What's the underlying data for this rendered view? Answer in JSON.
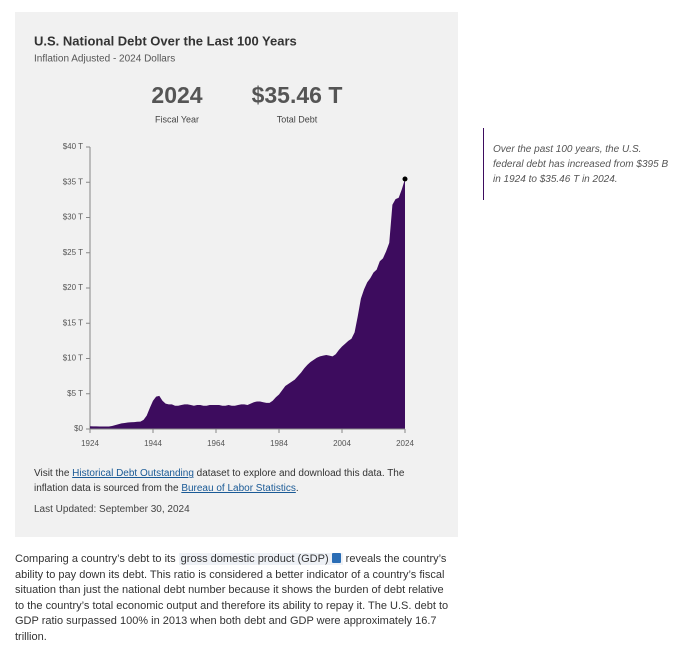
{
  "chart_data": {
    "type": "area",
    "title": "U.S. National Debt Over the Last 100 Years",
    "subtitle": "Inflation Adjusted - 2024 Dollars",
    "highlight": {
      "year": "2024",
      "year_caption": "Fiscal Year",
      "value": "$35.46 T",
      "value_caption": "Total Debt"
    },
    "color": "#3d0c5e",
    "x": [
      1924,
      1925,
      1926,
      1927,
      1928,
      1929,
      1930,
      1931,
      1932,
      1933,
      1934,
      1935,
      1936,
      1937,
      1938,
      1939,
      1940,
      1941,
      1942,
      1943,
      1944,
      1945,
      1946,
      1947,
      1948,
      1949,
      1950,
      1951,
      1952,
      1953,
      1954,
      1955,
      1956,
      1957,
      1958,
      1959,
      1960,
      1961,
      1962,
      1963,
      1964,
      1965,
      1966,
      1967,
      1968,
      1969,
      1970,
      1971,
      1972,
      1973,
      1974,
      1975,
      1976,
      1977,
      1978,
      1979,
      1980,
      1981,
      1982,
      1983,
      1984,
      1985,
      1986,
      1987,
      1988,
      1989,
      1990,
      1991,
      1992,
      1993,
      1994,
      1995,
      1996,
      1997,
      1998,
      1999,
      2000,
      2001,
      2002,
      2003,
      2004,
      2005,
      2006,
      2007,
      2008,
      2009,
      2010,
      2011,
      2012,
      2013,
      2014,
      2015,
      2016,
      2017,
      2018,
      2019,
      2020,
      2021,
      2022,
      2023,
      2024
    ],
    "values": [
      0.395,
      0.38,
      0.37,
      0.36,
      0.36,
      0.35,
      0.36,
      0.42,
      0.55,
      0.68,
      0.8,
      0.85,
      0.93,
      0.95,
      0.98,
      1.02,
      1.05,
      1.3,
      1.9,
      3.0,
      4.0,
      4.6,
      4.7,
      4.0,
      3.6,
      3.5,
      3.5,
      3.3,
      3.3,
      3.4,
      3.5,
      3.5,
      3.4,
      3.3,
      3.4,
      3.4,
      3.3,
      3.3,
      3.4,
      3.4,
      3.4,
      3.4,
      3.3,
      3.3,
      3.4,
      3.3,
      3.3,
      3.4,
      3.5,
      3.5,
      3.4,
      3.6,
      3.8,
      3.9,
      3.9,
      3.8,
      3.7,
      3.7,
      4.0,
      4.5,
      4.9,
      5.5,
      6.1,
      6.4,
      6.7,
      7.0,
      7.5,
      8.0,
      8.6,
      9.1,
      9.5,
      9.8,
      10.1,
      10.3,
      10.4,
      10.5,
      10.4,
      10.3,
      10.6,
      11.2,
      11.7,
      12.1,
      12.5,
      12.8,
      13.7,
      16.0,
      18.5,
      19.8,
      20.8,
      21.4,
      22.2,
      22.6,
      23.8,
      24.2,
      25.2,
      26.4,
      31.8,
      32.6,
      32.8,
      34.0,
      35.46
    ],
    "xlim": [
      1924,
      2024
    ],
    "xticks": [
      1924,
      1944,
      1964,
      1984,
      2004,
      2024
    ],
    "ylim": [
      0,
      40
    ],
    "yticks": [
      {
        "value": 0,
        "label": "$0"
      },
      {
        "value": 5,
        "label": "$5 T"
      },
      {
        "value": 10,
        "label": "$10 T"
      },
      {
        "value": 15,
        "label": "$15 T"
      },
      {
        "value": 20,
        "label": "$20 T"
      },
      {
        "value": 25,
        "label": "$25 T"
      },
      {
        "value": 30,
        "label": "$30 T"
      },
      {
        "value": 35,
        "label": "$35 T"
      },
      {
        "value": 40,
        "label": "$40 T"
      }
    ]
  },
  "note": {
    "parts": [
      "Visit the ",
      "Historical Debt Outstanding",
      " dataset to explore and download this data. The inflation data is sourced from the ",
      "Bureau of Labor Statistics",
      "."
    ],
    "updated": "Last Updated: September 30, 2024"
  },
  "aside": "Over the past 100 years, the U.S. federal debt has increased from $395 B in 1924 to $35.46 T in 2024.",
  "paragraph": {
    "before": "Comparing a country’s debt to its ",
    "term": "gross domestic product (GDP)",
    "after": " reveals the country’s ability to pay down its debt. This ratio is considered a better indicator of a country’s fiscal situation than just the national debt number because it shows the burden of debt relative to the country’s total economic output and therefore its ability to repay it. The U.S. debt to GDP ratio surpassed 100% in 2013 when both debt and GDP were approximately 16.7 trillion."
  }
}
